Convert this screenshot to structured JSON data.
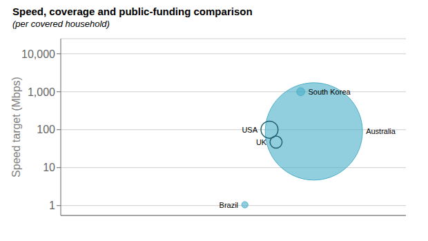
{
  "chart_data": {
    "type": "scatter",
    "title": "Speed, coverage and public-funding comparison",
    "subtitle": "(per covered household)",
    "ylabel": "Speed target (Mbps)",
    "log": "y",
    "grid": true,
    "tick_labels": "y",
    "xlim": [
      0.0,
      1.05
    ],
    "ylim": [
      0.55,
      25000
    ],
    "yticks": [
      1,
      10,
      100,
      {
        "value": 1000,
        "label": "1,000"
      },
      {
        "value": 10000,
        "label": "10,000"
      }
    ],
    "series": [
      {
        "marker": "filled",
        "color": "#4aafc8",
        "labels": [
          "Australia",
          "South Korea",
          "Brazil"
        ],
        "x": [
          0.77,
          0.73,
          0.56
        ],
        "values": [
          90,
          1000,
          1.05
        ],
        "size": [
          13000,
          90,
          55
        ]
      },
      {
        "marker": "open",
        "color": "#1f5f70",
        "labels": [
          "USA",
          "UK"
        ],
        "x": [
          0.635,
          0.655
        ],
        "values": [
          100,
          47
        ],
        "size": [
          400,
          200
        ]
      }
    ]
  }
}
